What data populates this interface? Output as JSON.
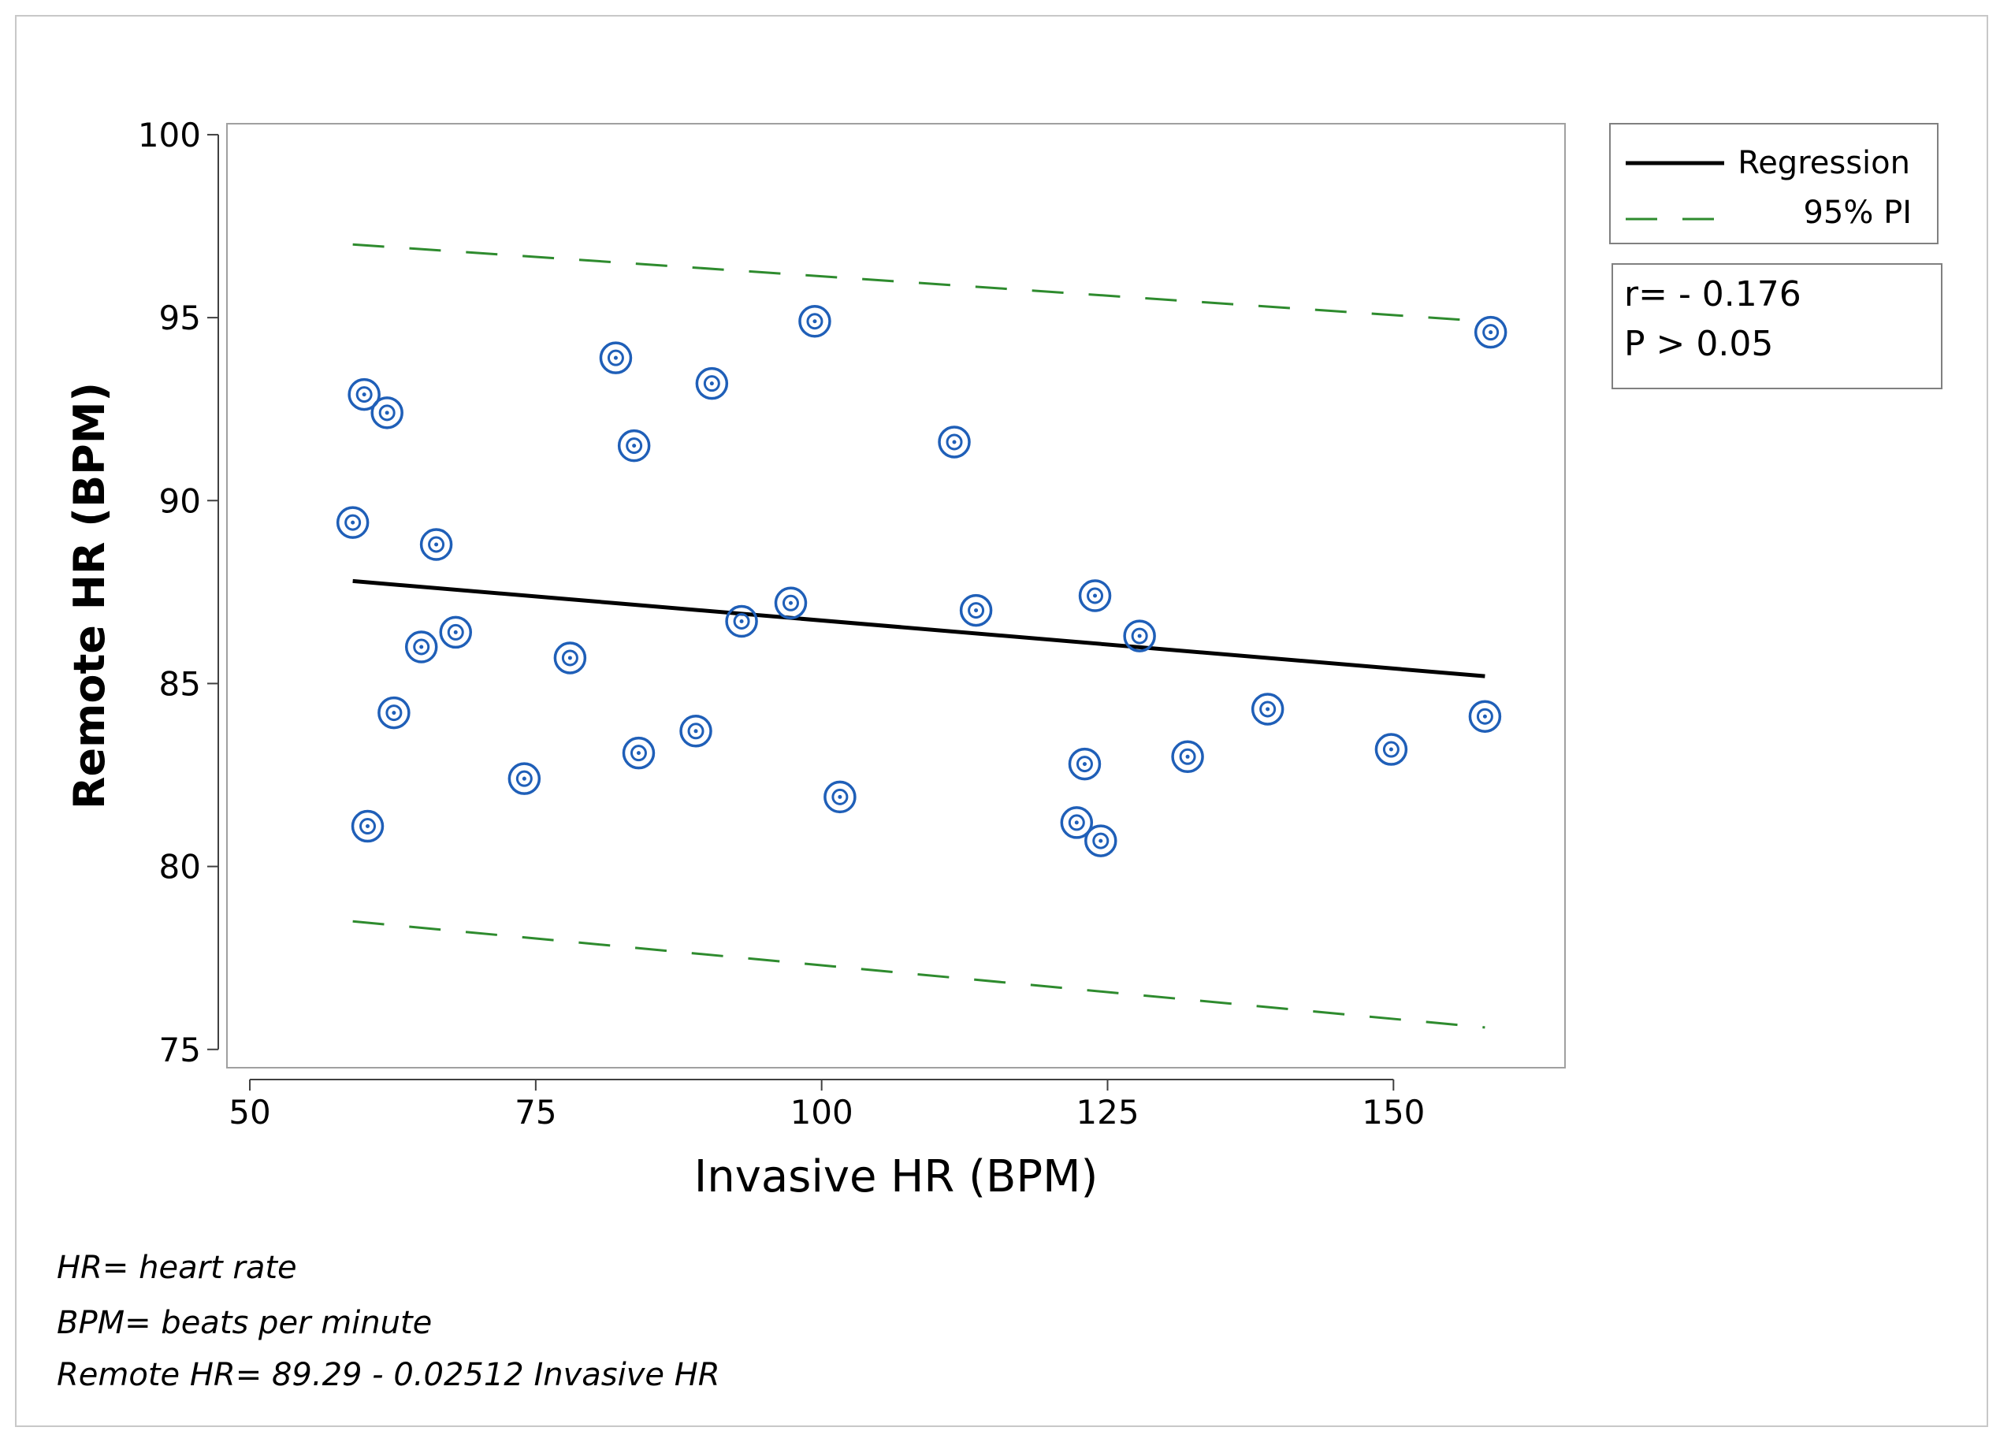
{
  "chart_data": {
    "type": "scatter",
    "xlabel": "Invasive HR (BPM)",
    "ylabel": "Remote HR (BPM)",
    "xlim": [
      48,
      165
    ],
    "ylim": [
      74.5,
      100.3
    ],
    "x_ticks": [
      50,
      75,
      100,
      125,
      150
    ],
    "y_ticks": [
      75,
      80,
      85,
      90,
      95,
      100
    ],
    "x_tick_labels": [
      "50",
      "75",
      "100",
      "125",
      "150"
    ],
    "y_tick_labels": [
      "75",
      "80",
      "85",
      "90",
      "95",
      "100"
    ],
    "grid": false,
    "points": [
      {
        "x": 59.0,
        "y": 89.4
      },
      {
        "x": 60.0,
        "y": 92.9
      },
      {
        "x": 60.3,
        "y": 81.1
      },
      {
        "x": 62.0,
        "y": 92.4
      },
      {
        "x": 62.6,
        "y": 84.2
      },
      {
        "x": 65.0,
        "y": 86.0
      },
      {
        "x": 66.3,
        "y": 88.8
      },
      {
        "x": 68.0,
        "y": 86.4
      },
      {
        "x": 74.0,
        "y": 82.4
      },
      {
        "x": 78.0,
        "y": 85.7
      },
      {
        "x": 82.0,
        "y": 93.9
      },
      {
        "x": 83.6,
        "y": 91.5
      },
      {
        "x": 84.0,
        "y": 83.1
      },
      {
        "x": 89.0,
        "y": 83.7
      },
      {
        "x": 90.4,
        "y": 93.2
      },
      {
        "x": 93.0,
        "y": 86.7
      },
      {
        "x": 97.3,
        "y": 87.2
      },
      {
        "x": 99.4,
        "y": 94.9
      },
      {
        "x": 101.6,
        "y": 81.9
      },
      {
        "x": 111.6,
        "y": 91.6
      },
      {
        "x": 113.5,
        "y": 87.0
      },
      {
        "x": 122.3,
        "y": 81.2
      },
      {
        "x": 123.0,
        "y": 82.8
      },
      {
        "x": 123.9,
        "y": 87.4
      },
      {
        "x": 124.4,
        "y": 80.7
      },
      {
        "x": 127.8,
        "y": 86.3
      },
      {
        "x": 132.0,
        "y": 83.0
      },
      {
        "x": 139.0,
        "y": 84.3
      },
      {
        "x": 149.8,
        "y": 83.2
      },
      {
        "x": 158.0,
        "y": 84.1
      },
      {
        "x": 158.5,
        "y": 94.6
      }
    ],
    "regression": {
      "label": "Regression",
      "intercept": 89.29,
      "slope": -0.02512,
      "x_range": [
        59,
        158
      ],
      "y_at_start": 87.8,
      "y_at_end": 85.2,
      "color": "#000000"
    },
    "prediction_interval": {
      "label": "95% PI",
      "upper_y_at_start": 97.0,
      "upper_y_at_end": 94.9,
      "lower_y_at_start": 78.5,
      "lower_y_at_end": 75.6,
      "color": "#2e8b2e"
    },
    "marker_color": "#1f5fb8",
    "stats_box": {
      "line1": "r= - 0.176",
      "line2": "P > 0.05"
    },
    "footnotes": [
      "HR= heart rate",
      "BPM= beats per minute",
      "Remote HR= 89.29 - 0.02512 Invasive HR"
    ]
  }
}
